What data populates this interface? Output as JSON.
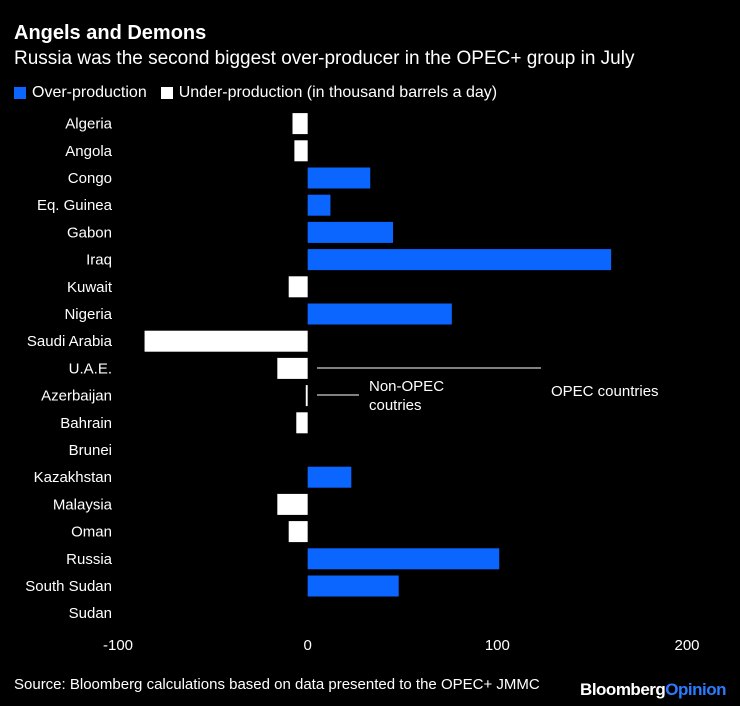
{
  "title": "Angels and Demons",
  "subtitle": "Russia was the second biggest over-producer in the OPEC+ group in July",
  "source": "Source: Bloomberg calculations based on data presented to the OPEC+ JMMC",
  "logo": {
    "brand": "Bloomberg",
    "suffix": "Opinion"
  },
  "colors": {
    "over": "#0a66ff",
    "under": "#ffffff",
    "background": "#000000"
  },
  "chart_data": {
    "type": "bar",
    "orientation": "horizontal",
    "title": "Angels and Demons",
    "subtitle": "Russia was the second biggest over-producer in the OPEC+ group in July",
    "legend": [
      {
        "key": "over",
        "label": "Over-production"
      },
      {
        "key": "under",
        "label": "Under-production (in thousand barrels a day)"
      }
    ],
    "categories": [
      "Algeria",
      "Angola",
      "Congo",
      "Eq. Guinea",
      "Gabon",
      "Iraq",
      "Kuwait",
      "Nigeria",
      "Saudi Arabia",
      "U.A.E.",
      "Azerbaijan",
      "Bahrain",
      "Brunei",
      "Kazakhstan",
      "Malaysia",
      "Oman",
      "Russia",
      "South Sudan",
      "Sudan"
    ],
    "values": [
      -8,
      -7,
      33,
      12,
      45,
      160,
      -10,
      76,
      -86,
      -16,
      -1,
      -6,
      0,
      23,
      -16,
      -10,
      101,
      48,
      0
    ],
    "xlim": [
      -100,
      200
    ],
    "xticks": [
      -100,
      0,
      100,
      200
    ],
    "annotations": [
      {
        "label": "Non-OPEC coutries"
      },
      {
        "label": "OPEC countries"
      }
    ]
  }
}
